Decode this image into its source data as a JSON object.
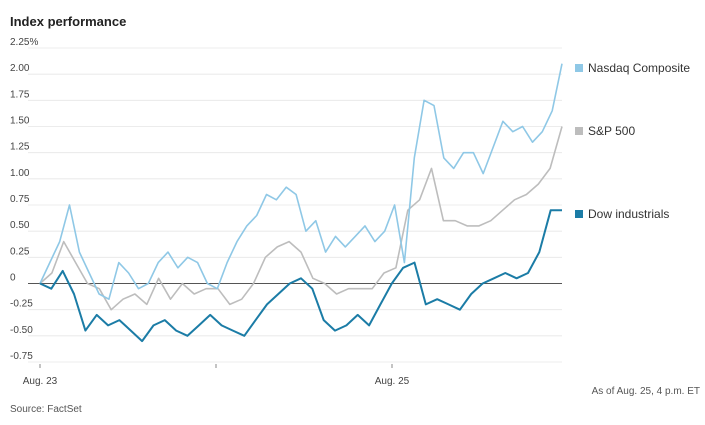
{
  "chart_data": {
    "type": "line",
    "title": "Index performance",
    "source": "Source: FactSet",
    "timestamp_note": "As of Aug. 25, 4 p.m. ET",
    "y_ticks": [
      "2.25%",
      "2.00",
      "1.75",
      "1.50",
      "1.25",
      "1.00",
      "0.75",
      "0.50",
      "0.25",
      "0",
      "-0.25",
      "-0.50",
      "-0.75"
    ],
    "x_ticks": [
      "Aug. 23",
      "Aug. 25"
    ],
    "ylim": [
      -0.75,
      2.25
    ],
    "grid": true,
    "legend_placement": "right",
    "series": [
      {
        "name": "Nasdaq Composite",
        "color": "#8fc8e6",
        "values": [
          0.0,
          0.2,
          0.4,
          0.75,
          0.3,
          0.1,
          -0.1,
          -0.15,
          0.2,
          0.1,
          -0.05,
          0.0,
          0.2,
          0.3,
          0.15,
          0.25,
          0.2,
          0.0,
          -0.05,
          0.2,
          0.4,
          0.55,
          0.65,
          0.85,
          0.8,
          0.92,
          0.85,
          0.5,
          0.6,
          0.3,
          0.45,
          0.35,
          0.45,
          0.55,
          0.4,
          0.5,
          0.75,
          0.2,
          1.2,
          1.75,
          1.7,
          1.2,
          1.1,
          1.25,
          1.25,
          1.05,
          1.3,
          1.55,
          1.45,
          1.5,
          1.35,
          1.45,
          1.65,
          2.1
        ]
      },
      {
        "name": "S&P 500",
        "color": "#bdbdbd",
        "values": [
          0.0,
          0.1,
          0.4,
          0.2,
          0.0,
          -0.05,
          -0.25,
          -0.15,
          -0.1,
          -0.2,
          0.05,
          -0.15,
          0.0,
          -0.1,
          -0.05,
          -0.05,
          -0.2,
          -0.15,
          0.0,
          0.25,
          0.35,
          0.4,
          0.3,
          0.05,
          0.0,
          -0.1,
          -0.05,
          -0.05,
          -0.05,
          0.1,
          0.15,
          0.7,
          0.8,
          1.1,
          0.6,
          0.6,
          0.55,
          0.55,
          0.6,
          0.7,
          0.8,
          0.85,
          0.95,
          1.1,
          1.5
        ]
      },
      {
        "name": "Dow industrials",
        "color": "#1b7ca6",
        "values": [
          0.0,
          -0.05,
          0.12,
          -0.1,
          -0.45,
          -0.3,
          -0.4,
          -0.35,
          -0.45,
          -0.55,
          -0.4,
          -0.35,
          -0.45,
          -0.5,
          -0.4,
          -0.3,
          -0.4,
          -0.45,
          -0.5,
          -0.35,
          -0.2,
          -0.1,
          0.0,
          0.05,
          -0.05,
          -0.35,
          -0.45,
          -0.4,
          -0.3,
          -0.4,
          -0.2,
          0.0,
          0.15,
          0.2,
          -0.2,
          -0.15,
          -0.2,
          -0.25,
          -0.1,
          0.0,
          0.05,
          0.1,
          0.05,
          0.1,
          0.3,
          0.7,
          0.7
        ]
      }
    ]
  }
}
